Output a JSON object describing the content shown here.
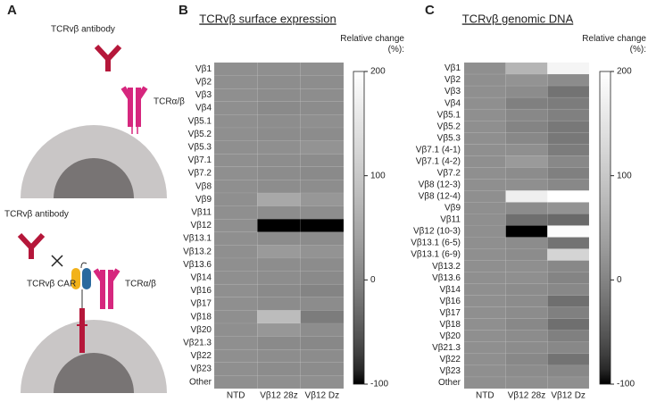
{
  "panels": [
    "A",
    "B",
    "C"
  ],
  "diagram": {
    "top_antibody": "TCRvβ antibody",
    "top_receptor": "TCRα/β",
    "bottom_antibody": "TCRvβ antibody",
    "bottom_car": "TCRvβ CAR",
    "bottom_receptor": "TCRα/β"
  },
  "chart_data": [
    {
      "type": "heatmap",
      "title": "TCRvβ surface expression",
      "colorbar_label": "Relative change (%):",
      "x": [
        "NTD",
        "Vβ12 28z",
        "Vβ12 Dz"
      ],
      "y": [
        "Vβ1",
        "Vβ2",
        "Vβ3",
        "Vβ4",
        "Vβ5.1",
        "Vβ5.2",
        "Vβ5.3",
        "Vβ7.1",
        "Vβ7.2",
        "Vβ8",
        "Vβ9",
        "Vβ11",
        "Vβ12",
        "Vβ13.1",
        "Vβ13.2",
        "Vβ13.6",
        "Vβ14",
        "Vβ16",
        "Vβ17",
        "Vβ18",
        "Vβ20",
        "Vβ21.3",
        "Vβ22",
        "Vβ23",
        "Other"
      ],
      "values": [
        [
          15,
          15,
          15
        ],
        [
          15,
          12,
          12
        ],
        [
          15,
          10,
          12
        ],
        [
          15,
          8,
          10
        ],
        [
          15,
          12,
          15
        ],
        [
          15,
          10,
          10
        ],
        [
          15,
          15,
          20
        ],
        [
          15,
          12,
          10
        ],
        [
          15,
          10,
          8
        ],
        [
          15,
          12,
          12
        ],
        [
          15,
          50,
          25
        ],
        [
          15,
          12,
          12
        ],
        [
          15,
          -100,
          -100
        ],
        [
          15,
          10,
          10
        ],
        [
          15,
          30,
          20
        ],
        [
          15,
          12,
          10
        ],
        [
          15,
          12,
          8
        ],
        [
          15,
          8,
          0
        ],
        [
          15,
          10,
          10
        ],
        [
          15,
          80,
          -10
        ],
        [
          15,
          25,
          12
        ],
        [
          15,
          8,
          5
        ],
        [
          15,
          12,
          10
        ],
        [
          15,
          10,
          10
        ],
        [
          15,
          15,
          15
        ]
      ],
      "zlim": [
        -100,
        200
      ],
      "zticks": [
        -100,
        0,
        100,
        200
      ]
    },
    {
      "type": "heatmap",
      "title": "TCRvβ genomic DNA",
      "colorbar_label": "Relative change (%):",
      "x": [
        "NTD",
        "Vβ12 28z",
        "Vβ12 Dz"
      ],
      "y": [
        "Vβ1",
        "Vβ2",
        "Vβ3",
        "Vβ4",
        "Vβ5.1",
        "Vβ5.2",
        "Vβ5.3",
        "Vβ7.1 (4-1)",
        "Vβ7.1 (4-2)",
        "Vβ7.2",
        "Vβ8 (12-3)",
        "Vβ8 (12-4)",
        "Vβ9",
        "Vβ11",
        "Vβ12 (10-3)",
        "Vβ13.1 (6-5)",
        "Vβ13.1 (6-9)",
        "Vβ13.2",
        "Vβ13.6",
        "Vβ14",
        "Vβ16",
        "Vβ17",
        "Vβ18",
        "Vβ20",
        "Vβ21.3",
        "Vβ22",
        "Vβ23",
        "Other"
      ],
      "values": [
        [
          15,
          70,
          180
        ],
        [
          15,
          20,
          10
        ],
        [
          15,
          10,
          -20
        ],
        [
          15,
          -5,
          -10
        ],
        [
          15,
          5,
          -5
        ],
        [
          15,
          0,
          -15
        ],
        [
          15,
          5,
          -15
        ],
        [
          15,
          15,
          -10
        ],
        [
          15,
          30,
          5
        ],
        [
          15,
          10,
          -5
        ],
        [
          15,
          15,
          5
        ],
        [
          15,
          170,
          200
        ],
        [
          15,
          10,
          20
        ],
        [
          15,
          -25,
          -30
        ],
        [
          15,
          -100,
          195
        ],
        [
          15,
          10,
          -20
        ],
        [
          15,
          10,
          120
        ],
        [
          15,
          15,
          5
        ],
        [
          15,
          15,
          0
        ],
        [
          15,
          10,
          5
        ],
        [
          15,
          10,
          -25
        ],
        [
          15,
          10,
          -5
        ],
        [
          15,
          5,
          -25
        ],
        [
          15,
          10,
          -5
        ],
        [
          15,
          10,
          5
        ],
        [
          15,
          5,
          -20
        ],
        [
          15,
          10,
          5
        ],
        [
          15,
          15,
          15
        ]
      ],
      "zlim": [
        -100,
        200
      ],
      "zticks": [
        -100,
        0,
        100,
        200
      ]
    }
  ]
}
